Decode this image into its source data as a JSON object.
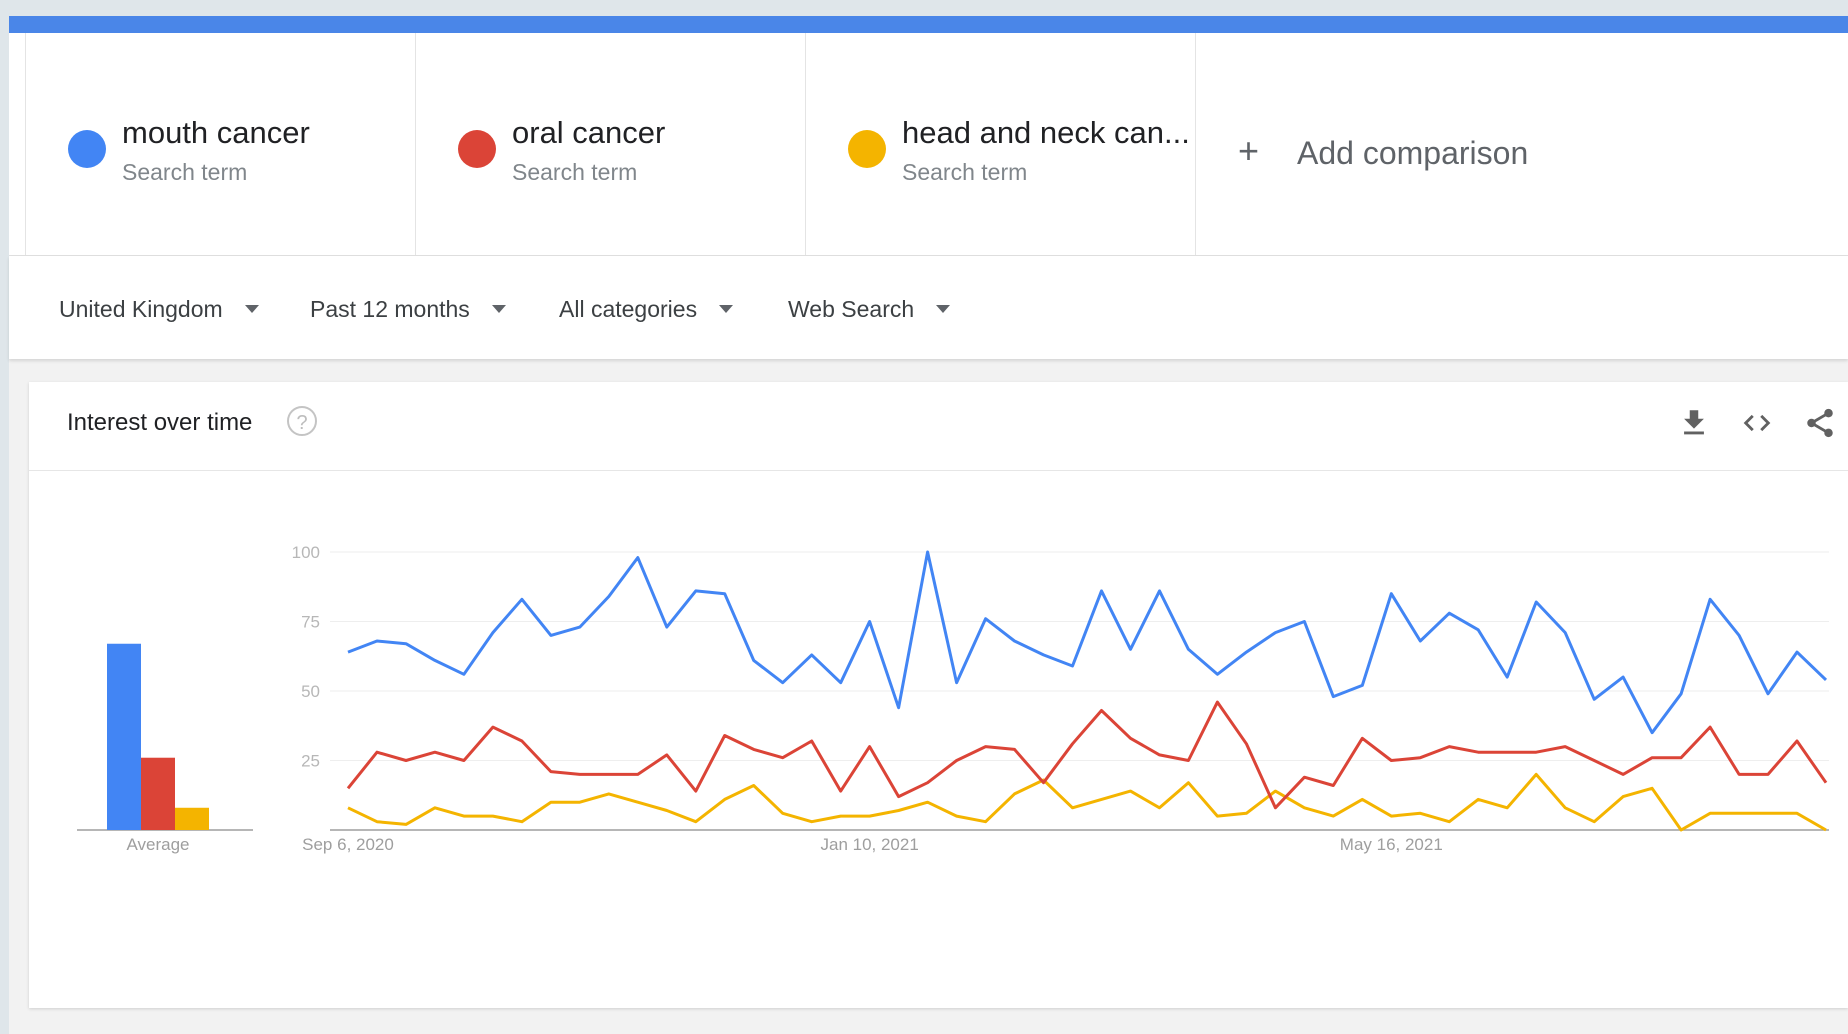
{
  "terms": [
    {
      "name": "mouth cancer",
      "sub": "Search term",
      "color": "#4285f4"
    },
    {
      "name": "oral cancer",
      "sub": "Search term",
      "color": "#db4437"
    },
    {
      "name": "head and neck can...",
      "sub": "Search term",
      "color": "#f4b400"
    }
  ],
  "add_comparison": {
    "label": "Add comparison",
    "icon": "plus-icon"
  },
  "filters": [
    {
      "label": "United Kingdom"
    },
    {
      "label": "Past 12 months"
    },
    {
      "label": "All categories"
    },
    {
      "label": "Web Search"
    }
  ],
  "card": {
    "title": "Interest over time",
    "help_icon": "?",
    "icons": [
      "download-icon",
      "embed-code-icon",
      "share-icon"
    ]
  },
  "chart_data": {
    "type": "line",
    "ylim": [
      0,
      100
    ],
    "yticks": [
      "100",
      "75",
      "50",
      "25"
    ],
    "xticks": [
      {
        "label": "Sep 6, 2020",
        "index": 0
      },
      {
        "label": "Jan 10, 2021",
        "index": 18
      },
      {
        "label": "May 16, 2021",
        "index": 36
      }
    ],
    "average_label": "Average",
    "averages": [
      67,
      26,
      8
    ],
    "series": [
      {
        "name": "mouth cancer",
        "color": "#4285f4",
        "values": [
          64,
          68,
          67,
          61,
          56,
          71,
          83,
          70,
          73,
          84,
          98,
          73,
          86,
          85,
          61,
          53,
          63,
          53,
          75,
          44,
          100,
          53,
          76,
          68,
          63,
          59,
          86,
          65,
          86,
          65,
          56,
          64,
          71,
          75,
          48,
          52,
          85,
          68,
          78,
          72,
          55,
          82,
          71,
          47,
          55,
          35,
          49,
          83,
          70,
          49,
          64,
          54
        ]
      },
      {
        "name": "oral cancer",
        "color": "#db4437",
        "values": [
          15,
          28,
          25,
          28,
          25,
          37,
          32,
          21,
          20,
          20,
          20,
          27,
          14,
          34,
          29,
          26,
          32,
          14,
          30,
          12,
          17,
          25,
          30,
          29,
          17,
          31,
          43,
          33,
          27,
          25,
          46,
          31,
          8,
          19,
          16,
          33,
          25,
          26,
          30,
          28,
          28,
          28,
          30,
          25,
          20,
          26,
          26,
          37,
          20,
          20,
          32,
          17
        ]
      },
      {
        "name": "head and neck can...",
        "color": "#f4b400",
        "values": [
          8,
          3,
          2,
          8,
          5,
          5,
          3,
          10,
          10,
          13,
          10,
          7,
          3,
          11,
          16,
          6,
          3,
          5,
          5,
          7,
          10,
          5,
          3,
          13,
          18,
          8,
          11,
          14,
          8,
          17,
          5,
          6,
          14,
          8,
          5,
          11,
          5,
          6,
          3,
          11,
          8,
          20,
          8,
          3,
          12,
          15,
          0,
          6,
          6,
          6,
          6,
          0
        ]
      }
    ]
  }
}
